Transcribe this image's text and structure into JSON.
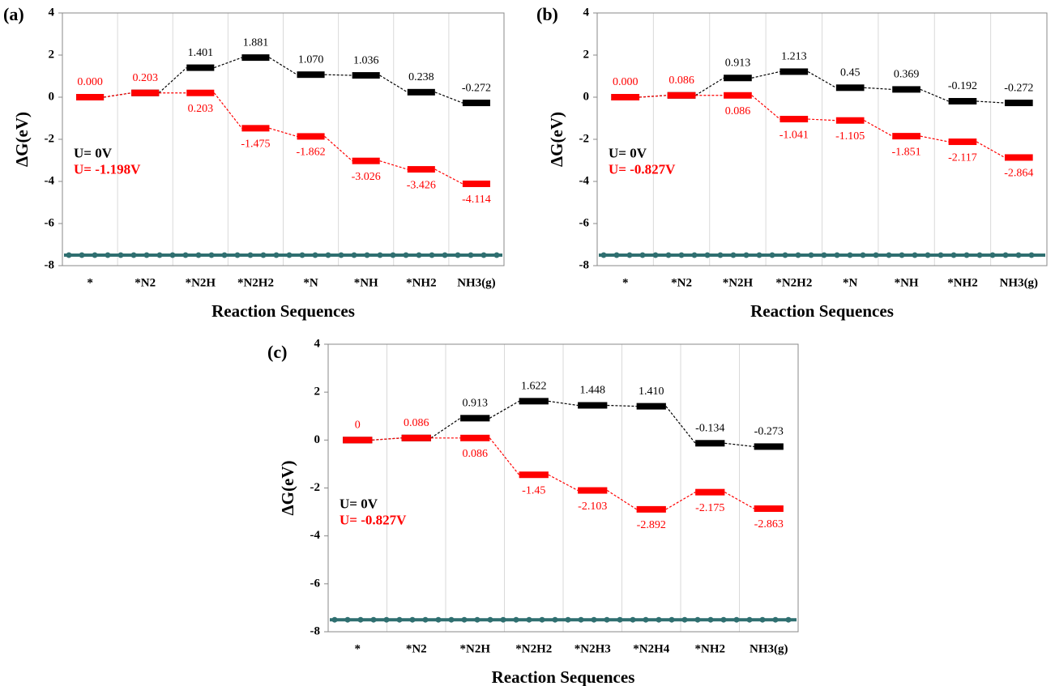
{
  "chart_data": [
    {
      "type": "energy-diagram",
      "panel": "(a)",
      "ylabel": "ΔG(eV)",
      "xlabel": "Reaction Sequences",
      "categories": [
        "*",
        "*N2",
        "*N2H",
        "*N2H2",
        "*N",
        "*NH",
        "*NH2",
        "NH3(g)"
      ],
      "ylim": [
        -8,
        4
      ],
      "yticks": [
        4,
        2,
        0,
        -2,
        -4,
        -6,
        -8
      ],
      "grid": true,
      "series": [
        {
          "name": "U= 0V",
          "color": "#000000",
          "values": [
            0,
            0.203,
            1.401,
            1.881,
            1.07,
            1.036,
            0.238,
            -0.272
          ],
          "value_labels": [
            null,
            null,
            "1.401",
            "1.881",
            "1.070",
            "1.036",
            "0.238",
            "-0.272"
          ]
        },
        {
          "name": "U= -1.198V",
          "color": "#ff0000",
          "values": [
            0,
            0.203,
            0.203,
            -1.475,
            -1.862,
            -3.026,
            -3.426,
            -4.114
          ],
          "value_labels": [
            "0.000",
            "0.203",
            "0.203",
            "-1.475",
            "-1.862",
            "-3.026",
            "-3.426",
            "-4.114"
          ]
        }
      ]
    },
    {
      "type": "energy-diagram",
      "panel": "(b)",
      "ylabel": "ΔG(eV)",
      "xlabel": "Reaction Sequences",
      "categories": [
        "*",
        "*N2",
        "*N2H",
        "*N2H2",
        "*N",
        "*NH",
        "*NH2",
        "NH3(g)"
      ],
      "ylim": [
        -8,
        4
      ],
      "yticks": [
        4,
        2,
        0,
        -2,
        -4,
        -6,
        -8
      ],
      "grid": true,
      "series": [
        {
          "name": "U= 0V",
          "color": "#000000",
          "values": [
            0,
            0.086,
            0.913,
            1.213,
            0.45,
            0.369,
            -0.192,
            -0.272
          ],
          "value_labels": [
            null,
            null,
            "0.913",
            "1.213",
            "0.45",
            "0.369",
            "-0.192",
            "-0.272"
          ]
        },
        {
          "name": "U= -0.827V",
          "color": "#ff0000",
          "values": [
            0,
            0.086,
            0.086,
            -1.041,
            -1.105,
            -1.851,
            -2.117,
            -2.864
          ],
          "value_labels": [
            "0.000",
            "0.086",
            "0.086",
            "-1.041",
            "-1.105",
            "-1.851",
            "-2.117",
            "-2.864"
          ]
        }
      ]
    },
    {
      "type": "energy-diagram",
      "panel": "(c)",
      "ylabel": "ΔG(eV)",
      "xlabel": "Reaction Sequences",
      "categories": [
        "*",
        "*N2",
        "*N2H",
        "*N2H2",
        "*N2H3",
        "*N2H4",
        "*NH2",
        "NH3(g)"
      ],
      "ylim": [
        -8,
        4
      ],
      "yticks": [
        4,
        2,
        0,
        -2,
        -4,
        -6,
        -8
      ],
      "grid": true,
      "series": [
        {
          "name": "U= 0V",
          "color": "#000000",
          "values": [
            0,
            0.086,
            0.913,
            1.622,
            1.448,
            1.41,
            -0.134,
            -0.273
          ],
          "value_labels": [
            null,
            null,
            "0.913",
            "1.622",
            "1.448",
            "1.410",
            "-0.134",
            "-0.273"
          ]
        },
        {
          "name": "U= -0.827V",
          "color": "#ff0000",
          "values": [
            0,
            0.086,
            0.086,
            -1.45,
            -2.103,
            -2.892,
            -2.175,
            -2.863
          ],
          "value_labels": [
            "0",
            "0.086",
            "0.086",
            "-1.45",
            "-2.103",
            "-2.892",
            "-2.175",
            "-2.863"
          ]
        }
      ]
    }
  ]
}
